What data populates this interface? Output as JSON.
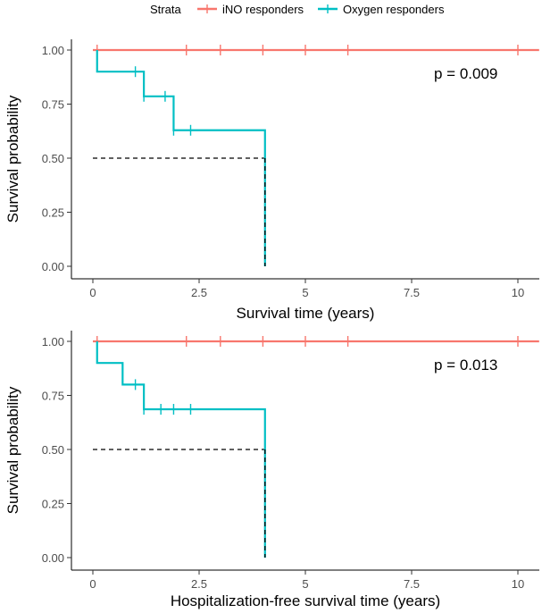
{
  "legend": {
    "title": "Strata",
    "entries": [
      {
        "name": "iNO responders",
        "color": "#F8766D"
      },
      {
        "name": "Oxygen responders",
        "color": "#00BFC4"
      }
    ]
  },
  "chart_data": [
    {
      "type": "line",
      "subtype": "kaplan-meier",
      "xlabel": "Survival time (years)",
      "ylabel": "Survival probability",
      "xlim": [
        0,
        10.5
      ],
      "ylim": [
        0,
        1
      ],
      "xticks": [
        0,
        2.5,
        5,
        7.5,
        10
      ],
      "xtick_labels": [
        "0",
        "2.5",
        "5",
        "7.5",
        "10"
      ],
      "yticks": [
        0,
        0.25,
        0.5,
        0.75,
        1
      ],
      "ytick_labels": [
        "0.00",
        "0.25",
        "0.50",
        "0.75",
        "1.00"
      ],
      "annotation": "p = 0.009",
      "grid": false,
      "series": [
        {
          "name": "iNO responders",
          "color": "#F8766D",
          "steps": [
            [
              0,
              1
            ],
            [
              10.5,
              1
            ]
          ],
          "censor": [
            0.1,
            2.2,
            3.0,
            4.0,
            5.0,
            6.0,
            10.0
          ]
        },
        {
          "name": "Oxygen responders",
          "color": "#00BFC4",
          "steps": [
            [
              0.1,
              1
            ],
            [
              0.1,
              0.9
            ],
            [
              1.2,
              0.9
            ],
            [
              1.2,
              0.786
            ],
            [
              1.9,
              0.786
            ],
            [
              1.9,
              0.629
            ],
            [
              4.05,
              0.629
            ],
            [
              4.05,
              0.0
            ]
          ],
          "censor": [
            [
              1.0,
              0.9
            ],
            [
              1.2,
              0.786
            ],
            [
              1.7,
              0.786
            ],
            [
              1.9,
              0.629
            ],
            [
              2.3,
              0.629
            ]
          ]
        }
      ],
      "median_line": {
        "from": [
          0,
          0.5
        ],
        "to": [
          4.05,
          0.5
        ],
        "drop_to": [
          4.05,
          0
        ]
      }
    },
    {
      "type": "line",
      "subtype": "kaplan-meier",
      "xlabel": "Hospitalization-free survival time (years)",
      "ylabel": "Survival probability",
      "xlim": [
        0,
        10.5
      ],
      "ylim": [
        0,
        1
      ],
      "xticks": [
        0,
        2.5,
        5,
        7.5,
        10
      ],
      "xtick_labels": [
        "0",
        "2.5",
        "5",
        "7.5",
        "10"
      ],
      "yticks": [
        0,
        0.25,
        0.5,
        0.75,
        1
      ],
      "ytick_labels": [
        "0.00",
        "0.25",
        "0.50",
        "0.75",
        "1.00"
      ],
      "annotation": "p = 0.013",
      "grid": false,
      "series": [
        {
          "name": "iNO responders",
          "color": "#F8766D",
          "steps": [
            [
              0,
              1
            ],
            [
              10.5,
              1
            ]
          ],
          "censor": [
            0.1,
            2.2,
            3.0,
            4.0,
            5.0,
            6.0,
            10.0
          ]
        },
        {
          "name": "Oxygen responders",
          "color": "#00BFC4",
          "steps": [
            [
              0.1,
              1
            ],
            [
              0.1,
              0.9
            ],
            [
              0.7,
              0.9
            ],
            [
              0.7,
              0.8
            ],
            [
              1.2,
              0.8
            ],
            [
              1.2,
              0.686
            ],
            [
              4.05,
              0.686
            ],
            [
              4.05,
              0.0
            ]
          ],
          "censor": [
            [
              1.0,
              0.8
            ],
            [
              1.2,
              0.686
            ],
            [
              1.6,
              0.686
            ],
            [
              1.9,
              0.686
            ],
            [
              2.3,
              0.686
            ]
          ]
        }
      ],
      "median_line": {
        "from": [
          0,
          0.5
        ],
        "to": [
          4.05,
          0.5
        ],
        "drop_to": [
          4.05,
          0
        ]
      }
    }
  ]
}
